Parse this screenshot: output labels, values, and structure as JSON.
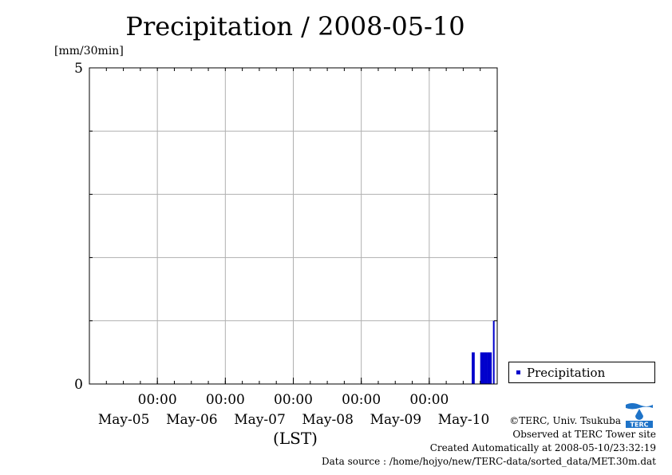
{
  "chart_data": {
    "type": "bar",
    "title": "Precipitation / 2008-05-10",
    "ylabel": "[mm/30min]",
    "xlabel": "(LST)",
    "ylim": [
      0,
      5
    ],
    "yticks": [
      "0",
      "5"
    ],
    "xlim_hours": [
      0,
      144
    ],
    "x_ticks": [
      {
        "hour": 24,
        "time": "00:00",
        "date": "May-05"
      },
      {
        "hour": 48,
        "time": "00:00",
        "date": "May-06"
      },
      {
        "hour": 72,
        "time": "00:00",
        "date": "May-07"
      },
      {
        "hour": 96,
        "time": "00:00",
        "date": "May-08"
      },
      {
        "hour": 120,
        "time": "00:00",
        "date": "May-09"
      },
      {
        "hour": 144,
        "time": "",
        "date": "May-10"
      }
    ],
    "legend": {
      "position": "right",
      "entries": [
        {
          "name": "Precipitation",
          "color": "#0000cc"
        }
      ]
    },
    "grid": true,
    "series": [
      {
        "name": "Precipitation",
        "color": "#0000cc",
        "points": [
          {
            "hour": 135.0,
            "value": 0.5
          },
          {
            "hour": 135.5,
            "value": 0.5
          },
          {
            "hour": 138.0,
            "value": 0.5
          },
          {
            "hour": 138.5,
            "value": 0.5
          },
          {
            "hour": 139.0,
            "value": 0.5
          },
          {
            "hour": 139.5,
            "value": 0.5
          },
          {
            "hour": 140.0,
            "value": 0.5
          },
          {
            "hour": 140.5,
            "value": 0.5
          },
          {
            "hour": 141.0,
            "value": 0.5
          },
          {
            "hour": 141.5,
            "value": 0.5
          },
          {
            "hour": 142.5,
            "value": 1.0
          }
        ]
      }
    ]
  },
  "credits": {
    "copyright": "©TERC, Univ. Tsukuba",
    "site": "Observed at TERC Tower site",
    "created": "Created Automatically at 2008-05-10/23:32:19",
    "source": "Data source : /home/hojyo/new/TERC-data/sorted_data/MET.30m.dat"
  },
  "logo": {
    "text": "TERC",
    "color": "#1e73c8"
  }
}
